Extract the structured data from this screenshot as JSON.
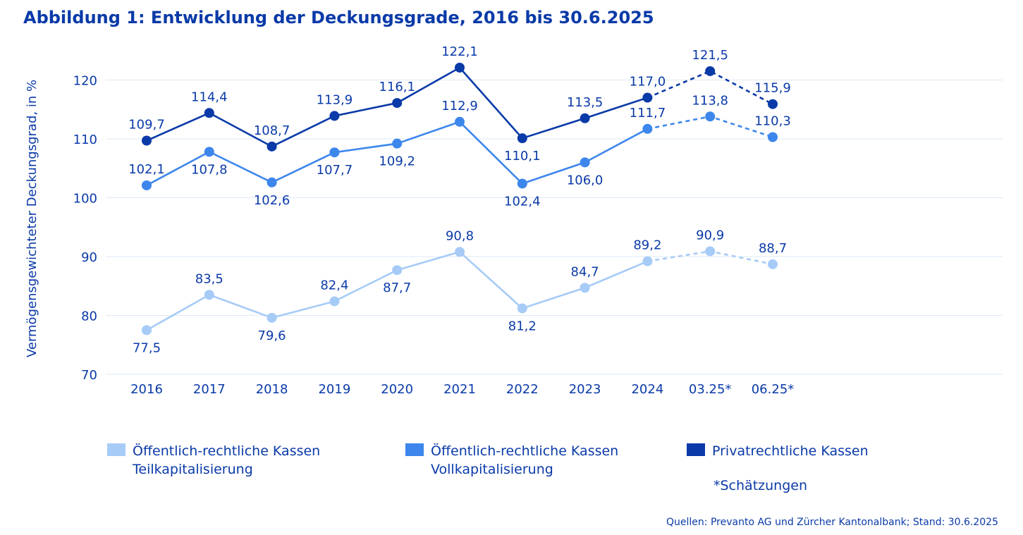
{
  "title": "Abbildung 1: Entwicklung der Deckungsgrade, 2016 bis 30.6.2025",
  "chart_data": {
    "type": "line",
    "x": [
      "2016",
      "2017",
      "2018",
      "2019",
      "2020",
      "2021",
      "2022",
      "2023",
      "2024",
      "03.25*",
      "06.25*"
    ],
    "ylabel": "Vermögensgewichteter Deckungsgrad, in %",
    "ylim": [
      70,
      122
    ],
    "yticks": [
      70,
      80,
      90,
      100,
      110,
      120
    ],
    "grid": true,
    "estimated_from_index": 8,
    "series": [
      {
        "name": "Öffentlich-rechtliche Kassen Teilkapitalisierung",
        "color": "#a6cbf7",
        "values": [
          77.5,
          83.5,
          79.6,
          82.4,
          87.7,
          90.8,
          81.2,
          84.7,
          89.2,
          90.9,
          88.7
        ],
        "labels": [
          "77,5",
          "83,5",
          "79,6",
          "82,4",
          "87,7",
          "90,8",
          "81,2",
          "84,7",
          "89,2",
          "90,9",
          "88,7"
        ],
        "label_pos": [
          "below",
          "above",
          "below",
          "above",
          "below",
          "above",
          "below",
          "above",
          "above",
          "above",
          "above"
        ]
      },
      {
        "name": "Öffentlich-rechtliche Kassen Vollkapitalisierung",
        "color": "#3d86ec",
        "values": [
          102.1,
          107.8,
          102.6,
          107.7,
          109.2,
          112.9,
          102.4,
          106.0,
          111.7,
          113.8,
          110.3
        ],
        "labels": [
          "102,1",
          "107,8",
          "102,6",
          "107,7",
          "109,2",
          "112,9",
          "102,4",
          "106,0",
          "111,7",
          "113,8",
          "110,3"
        ],
        "label_pos": [
          "above",
          "below",
          "below",
          "below",
          "below",
          "above",
          "below",
          "below",
          "above",
          "above",
          "above"
        ]
      },
      {
        "name": "Privatrechtliche Kassen",
        "color": "#0a3aa8",
        "values": [
          109.7,
          114.4,
          108.7,
          113.9,
          116.1,
          122.1,
          110.1,
          113.5,
          117.0,
          121.5,
          115.9
        ],
        "labels": [
          "109,7",
          "114,4",
          "108,7",
          "113,9",
          "116,1",
          "122,1",
          "110,1",
          "113,5",
          "117,0",
          "121,5",
          "115,9"
        ],
        "label_pos": [
          "above",
          "above",
          "above",
          "above",
          "above",
          "above",
          "below",
          "above",
          "above",
          "above",
          "above"
        ]
      }
    ]
  },
  "legend": [
    {
      "label": "Öffentlich-rechtliche Kassen\nTeilkapitalisierung",
      "color": "#a6cbf7"
    },
    {
      "label": "Öffentlich-rechtliche Kassen\nVollkapitalisierung",
      "color": "#3d86ec"
    },
    {
      "label": "Privatrechtliche Kassen",
      "color": "#0a3aa8"
    }
  ],
  "footnote": "*Schätzungen",
  "source": "Quellen: Prevanto AG und Zürcher Kantonalbank; Stand: 30.6.2025"
}
